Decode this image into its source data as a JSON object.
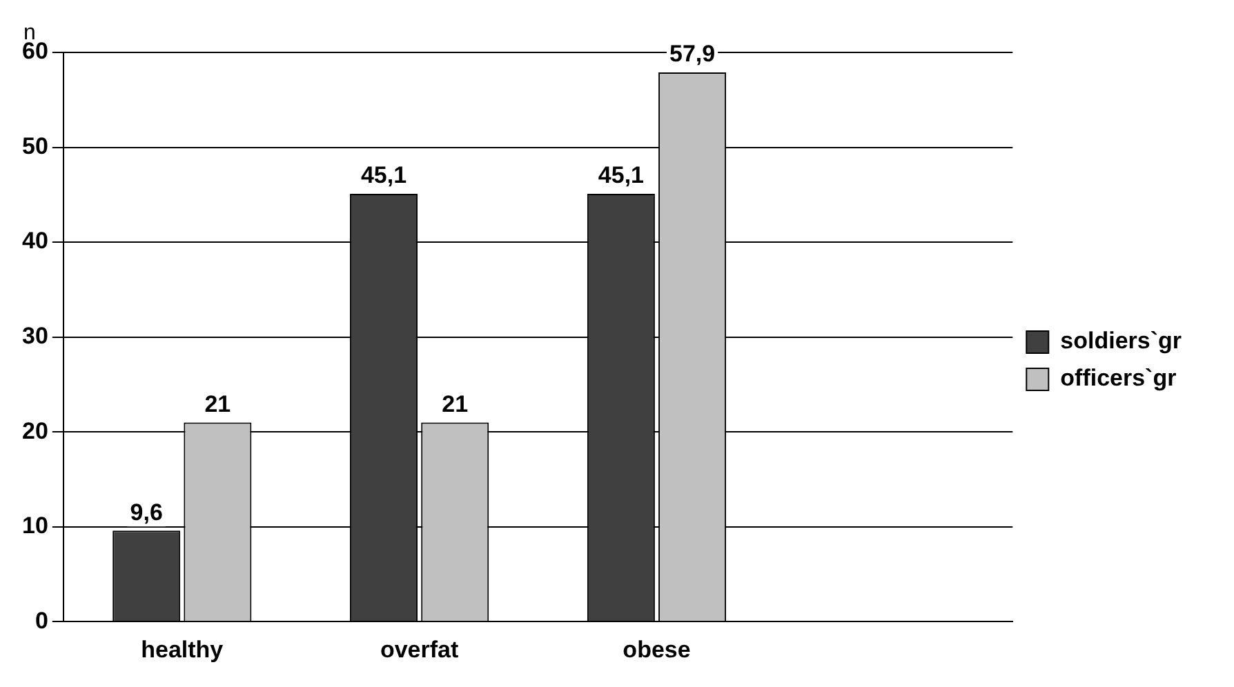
{
  "chart_data": {
    "type": "bar",
    "ylabel": "n",
    "categories": [
      "healthy",
      "overfat",
      "obese",
      null
    ],
    "series": [
      {
        "name": "soldiers`gr",
        "color": "#404040",
        "values": [
          9.6,
          45.1,
          45.1,
          null
        ],
        "value_labels": [
          "9,6",
          "45,1",
          "45,1",
          null
        ]
      },
      {
        "name": "officers`gr",
        "color": "#c0c0c0",
        "values": [
          21,
          21,
          57.9,
          null
        ],
        "value_labels": [
          "21",
          "21",
          "57,9",
          null
        ]
      }
    ],
    "ylim": [
      0,
      60
    ],
    "yticks": [
      0,
      10,
      20,
      30,
      40,
      50,
      60
    ],
    "grid": "y",
    "legend": "right"
  }
}
